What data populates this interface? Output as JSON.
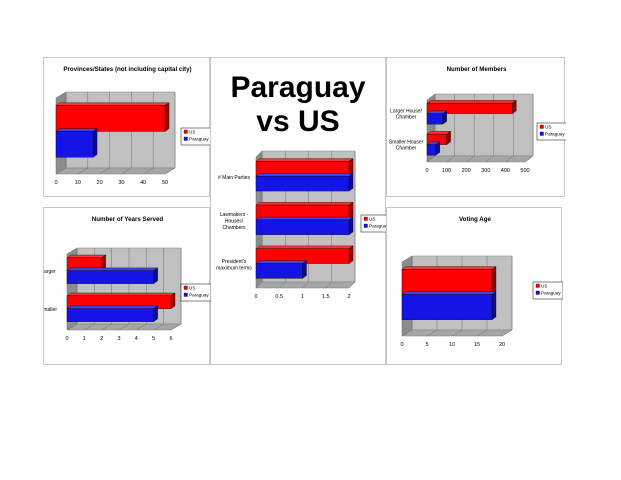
{
  "headline": {
    "line1": "Paraguay",
    "line2": "vs US"
  },
  "colors": {
    "us": "#ff0000",
    "paraguay": "#1414e6",
    "wall": "#bdbdbd"
  },
  "chart_data": [
    {
      "id": "provinces",
      "type": "bar",
      "orientation": "horizontal",
      "title": "Provinces/States (not including capital city)",
      "categories": [
        ""
      ],
      "series": [
        {
          "name": "US",
          "values": [
            50
          ]
        },
        {
          "name": "Paraguay",
          "values": [
            17
          ]
        }
      ],
      "xlim": [
        0,
        50
      ],
      "ticks": [
        0,
        10,
        20,
        30,
        40,
        50
      ],
      "grid": true,
      "legend": "right"
    },
    {
      "id": "members",
      "type": "bar",
      "orientation": "horizontal",
      "title": "Number of Members",
      "categories": [
        "Larger House/\nChamber",
        "Smaller House/\nChamber"
      ],
      "series": [
        {
          "name": "US",
          "values": [
            435,
            100
          ]
        },
        {
          "name": "Paraguay",
          "values": [
            80,
            45
          ]
        }
      ],
      "xlim": [
        0,
        500
      ],
      "ticks": [
        0,
        100,
        200,
        300,
        400,
        500
      ],
      "grid": true,
      "legend": "right"
    },
    {
      "id": "main",
      "type": "bar",
      "orientation": "horizontal",
      "title": "",
      "categories": [
        "# Main Parties",
        "Lawmakers -\nHouses/\nChambers",
        "President's\nmaximum terms"
      ],
      "series": [
        {
          "name": "US",
          "values": [
            2,
            2,
            2
          ]
        },
        {
          "name": "Paraguay",
          "values": [
            2,
            2,
            1
          ]
        }
      ],
      "xlim": [
        0,
        2
      ],
      "ticks": [
        0,
        0.5,
        1,
        1.5,
        2
      ],
      "grid": true,
      "legend": "right"
    },
    {
      "id": "years",
      "type": "bar",
      "orientation": "horizontal",
      "title": "Number of Years Served",
      "categories": [
        "Larger",
        "Smaller"
      ],
      "series": [
        {
          "name": "US",
          "values": [
            2,
            6
          ]
        },
        {
          "name": "Paraguay",
          "values": [
            5,
            5
          ]
        }
      ],
      "xlim": [
        0,
        6
      ],
      "ticks": [
        0,
        1,
        2,
        3,
        4,
        5,
        6
      ],
      "grid": true,
      "legend": "right"
    },
    {
      "id": "voting",
      "type": "bar",
      "orientation": "horizontal",
      "title": "Voting Age",
      "categories": [
        ""
      ],
      "series": [
        {
          "name": "US",
          "values": [
            18
          ]
        },
        {
          "name": "Paraguay",
          "values": [
            18
          ]
        }
      ],
      "xlim": [
        0,
        20
      ],
      "ticks": [
        0,
        5,
        10,
        15,
        20
      ],
      "grid": true,
      "legend": "right"
    }
  ]
}
